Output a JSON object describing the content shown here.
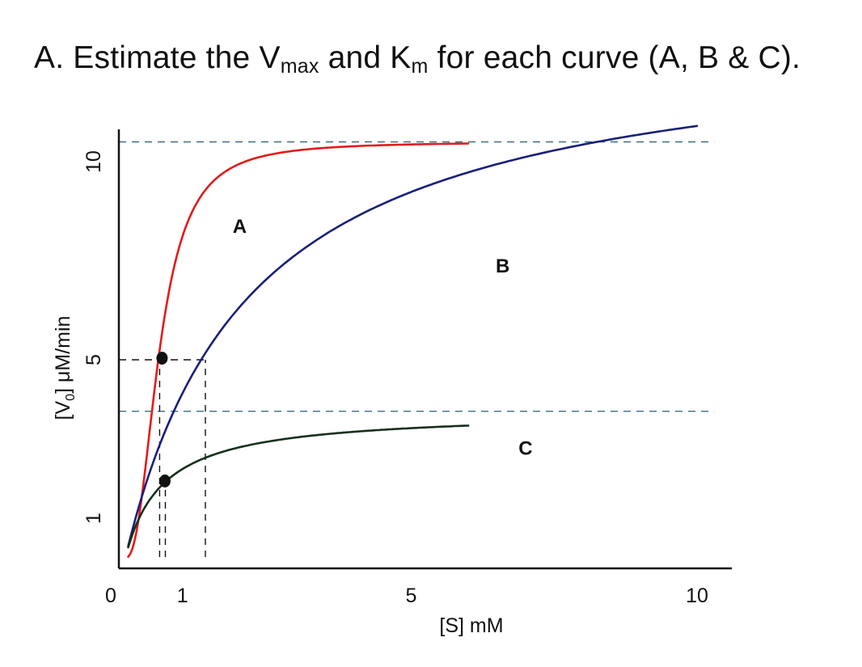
{
  "question": {
    "prefix": "A. Estimate the V",
    "vmax_sub": "max",
    "middle": " and K",
    "km_sub": "m",
    "suffix": " for each curve (A, B & C)."
  },
  "colors": {
    "curve_a": "#e41b1b",
    "curve_b": "#1b1f7a",
    "curve_c": "#16301c",
    "guide_teal": "#3a6f86",
    "guide_black": "#111111"
  },
  "chart_data": {
    "type": "line",
    "title": "",
    "xlabel": "[S] mM",
    "ylabel_parts": [
      "[V",
      "0",
      "] μM/min"
    ],
    "xlim": [
      0,
      11
    ],
    "ylim": [
      0,
      11
    ],
    "x_ticks": [
      0,
      1,
      5,
      10
    ],
    "x_tick_labels": [
      "0",
      "1",
      "5",
      "10"
    ],
    "y_ticks": [
      1,
      5,
      10
    ],
    "y_tick_labels": [
      "1",
      "5",
      "10"
    ],
    "grid": false,
    "legend": "none",
    "series": [
      {
        "name": "A",
        "color": "#e41b1b",
        "vmax": 10.5,
        "km": 0.6,
        "hill": 2.4,
        "x_start": 0.05,
        "x_end": 6,
        "label_at": [
          2.0,
          8.2
        ]
      },
      {
        "name": "B",
        "color": "#1b1f7a",
        "vmax": 13.3,
        "km": 2.2,
        "hill": 1,
        "x_start": 0.05,
        "x_end": 10,
        "label_at": [
          6.6,
          7.2
        ]
      },
      {
        "name": "C",
        "color": "#16301c",
        "vmax": 3.7,
        "km": 0.65,
        "hill": 1,
        "x_start": 0.05,
        "x_end": 6,
        "label_at": [
          7.0,
          2.6
        ]
      }
    ],
    "guide_lines": [
      {
        "name": "vmax-a-b-guide",
        "y": 10.5,
        "x_from": 0,
        "x_to": 10.3,
        "color": "#3a6f86"
      },
      {
        "name": "vmax-c-guide",
        "y": 3.7,
        "x_from": 0,
        "x_to": 10.3,
        "color": "#3a6f86"
      },
      {
        "name": "half-vmax-guide",
        "y": 5,
        "x_from": 0,
        "x_to": 1.4,
        "color": "#111111"
      }
    ],
    "vertical_guides": [
      {
        "name": "km-a-guide",
        "x": 0.6,
        "y_from": 0,
        "y_to": 5,
        "color": "#111111"
      },
      {
        "name": "km-c-guide",
        "x": 0.7,
        "y_from": 0,
        "y_to": 1.9,
        "color": "#111111"
      },
      {
        "name": "km-b-guide",
        "x": 1.4,
        "y_from": 0,
        "y_to": 5,
        "color": "#111111"
      }
    ],
    "points": [
      {
        "name": "point-a-half-vmax",
        "x": 0.6,
        "y": 5
      },
      {
        "name": "point-c-marker",
        "x": 0.65,
        "y": 1.9
      }
    ]
  }
}
